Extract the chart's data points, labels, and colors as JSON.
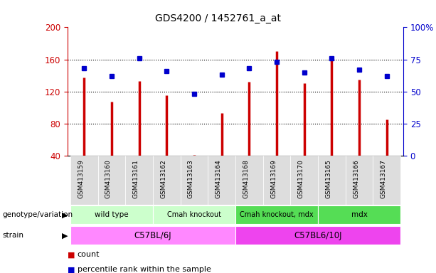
{
  "title": "GDS4200 / 1452761_a_at",
  "samples": [
    "GSM413159",
    "GSM413160",
    "GSM413161",
    "GSM413162",
    "GSM413163",
    "GSM413164",
    "GSM413168",
    "GSM413169",
    "GSM413170",
    "GSM413165",
    "GSM413166",
    "GSM413167"
  ],
  "counts": [
    137,
    107,
    133,
    115,
    41,
    93,
    132,
    170,
    130,
    163,
    135,
    85
  ],
  "percentiles": [
    68,
    62,
    76,
    66,
    48,
    63,
    68,
    73,
    65,
    76,
    67,
    62
  ],
  "ylim_left": [
    40,
    200
  ],
  "ylim_right": [
    0,
    100
  ],
  "yticks_left": [
    40,
    80,
    120,
    160,
    200
  ],
  "yticks_right": [
    0,
    25,
    50,
    75,
    100
  ],
  "bar_color": "#cc0000",
  "dot_color": "#0000cc",
  "genotype_groups": [
    {
      "label": "wild type",
      "start": 0,
      "end": 2,
      "color": "#ccffcc"
    },
    {
      "label": "Cmah knockout",
      "start": 3,
      "end": 5,
      "color": "#ccffcc"
    },
    {
      "label": "Cmah knockout, mdx",
      "start": 6,
      "end": 8,
      "color": "#55dd55"
    },
    {
      "label": "mdx",
      "start": 9,
      "end": 11,
      "color": "#55dd55"
    }
  ],
  "strain_groups": [
    {
      "label": "C57BL/6J",
      "start": 0,
      "end": 5,
      "color": "#ff88ff"
    },
    {
      "label": "C57BL6/10J",
      "start": 6,
      "end": 11,
      "color": "#ee44ee"
    }
  ],
  "legend_items": [
    {
      "label": "count",
      "color": "#cc0000"
    },
    {
      "label": "percentile rank within the sample",
      "color": "#0000cc"
    }
  ],
  "row_label_genotype": "genotype/variation",
  "row_label_strain": "strain",
  "tick_color_left": "#cc0000",
  "tick_color_right": "#0000cc"
}
